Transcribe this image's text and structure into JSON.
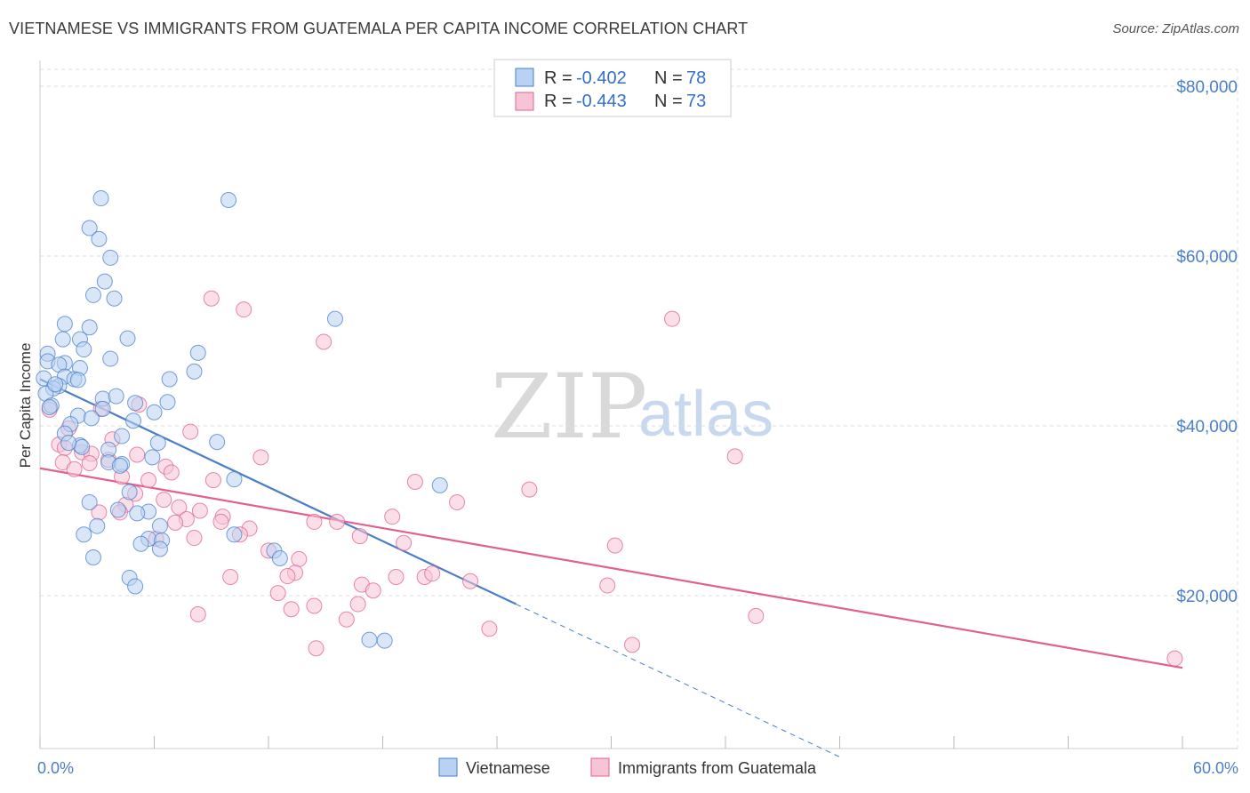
{
  "title": "VIETNAMESE VS IMMIGRANTS FROM GUATEMALA PER CAPITA INCOME CORRELATION CHART",
  "source": "Source: ZipAtlas.com",
  "watermark": {
    "zip": "ZIP",
    "atlas": "atlas"
  },
  "colors": {
    "blue": "#4a7fc8",
    "blue_fill": "#b9d2f3",
    "pink": "#e06090",
    "pink_fill": "#f7c4d5",
    "grid": "#dddddd"
  },
  "legend": {
    "series1": {
      "r_label": "R = ",
      "r_value": "-0.402",
      "n_label": "N = ",
      "n_value": "78"
    },
    "series2": {
      "r_label": "R = ",
      "r_value": "-0.443",
      "n_label": "N = ",
      "n_value": "73"
    }
  },
  "chart_data": {
    "type": "scatter",
    "title": "VIETNAMESE VS IMMIGRANTS FROM GUATEMALA PER CAPITA INCOME CORRELATION CHART",
    "xlabel": "",
    "ylabel": "Per Capita Income",
    "xlim": [
      0,
      60
    ],
    "ylim": [
      0,
      82000
    ],
    "x_tick_labels": [
      "0.0%",
      "60.0%"
    ],
    "y_tick_labels": [
      "$20,000",
      "$40,000",
      "$60,000",
      "$80,000"
    ],
    "y_ticks": [
      20000,
      40000,
      60000,
      80000
    ],
    "series": [
      {
        "name": "Vietnamese",
        "color": "#4a7fc8",
        "trend": {
          "x0": 0,
          "y0": 45500,
          "x1": 25,
          "y1": 19000,
          "dash_to_x": 42,
          "dash_to_y": 1000
        },
        "points": [
          [
            3.2,
            66800
          ],
          [
            9.9,
            66600
          ],
          [
            2.6,
            63300
          ],
          [
            3.1,
            62000
          ],
          [
            3.7,
            59800
          ],
          [
            3.4,
            57000
          ],
          [
            2.8,
            55400
          ],
          [
            3.9,
            55000
          ],
          [
            1.3,
            52000
          ],
          [
            15.5,
            52600
          ],
          [
            2.6,
            51600
          ],
          [
            1.2,
            50200
          ],
          [
            2.1,
            50200
          ],
          [
            4.6,
            50300
          ],
          [
            2.3,
            49000
          ],
          [
            8.3,
            48600
          ],
          [
            0.4,
            48500
          ],
          [
            3.7,
            47900
          ],
          [
            0.4,
            47600
          ],
          [
            1.3,
            47400
          ],
          [
            1.0,
            47200
          ],
          [
            2.1,
            46800
          ],
          [
            8.1,
            46400
          ],
          [
            1.3,
            45800
          ],
          [
            0.2,
            45600
          ],
          [
            1.8,
            45500
          ],
          [
            2.0,
            45400
          ],
          [
            6.8,
            45500
          ],
          [
            1.0,
            44700
          ],
          [
            0.7,
            44400
          ],
          [
            0.3,
            43800
          ],
          [
            3.3,
            43200
          ],
          [
            4.0,
            43500
          ],
          [
            6.7,
            42800
          ],
          [
            0.6,
            42400
          ],
          [
            5.0,
            42700
          ],
          [
            0.5,
            42200
          ],
          [
            3.3,
            42000
          ],
          [
            6.0,
            41600
          ],
          [
            2.0,
            41200
          ],
          [
            2.7,
            40900
          ],
          [
            4.9,
            40600
          ],
          [
            1.6,
            40200
          ],
          [
            1.3,
            39100
          ],
          [
            4.3,
            38800
          ],
          [
            9.3,
            38100
          ],
          [
            6.2,
            38000
          ],
          [
            2.1,
            37700
          ],
          [
            2.2,
            37500
          ],
          [
            3.6,
            37200
          ],
          [
            5.9,
            36300
          ],
          [
            3.6,
            35700
          ],
          [
            4.3,
            35500
          ],
          [
            4.2,
            35300
          ],
          [
            10.2,
            33700
          ],
          [
            21.0,
            33000
          ],
          [
            4.7,
            32200
          ],
          [
            2.6,
            31000
          ],
          [
            4.1,
            30100
          ],
          [
            5.7,
            29900
          ],
          [
            5.1,
            29700
          ],
          [
            3.0,
            28200
          ],
          [
            6.3,
            28200
          ],
          [
            2.3,
            27200
          ],
          [
            10.2,
            27200
          ],
          [
            5.7,
            26700
          ],
          [
            6.4,
            26500
          ],
          [
            5.3,
            26100
          ],
          [
            6.3,
            25500
          ],
          [
            12.3,
            25300
          ],
          [
            12.6,
            24400
          ],
          [
            2.8,
            24500
          ],
          [
            4.7,
            22100
          ],
          [
            5.0,
            21100
          ],
          [
            17.3,
            14800
          ],
          [
            18.1,
            14700
          ],
          [
            1.5,
            38000
          ],
          [
            0.8,
            44900
          ]
        ]
      },
      {
        "name": "Immigrants from Guatemala",
        "color": "#e06090",
        "trend": {
          "x0": 0,
          "y0": 35000,
          "x1": 60,
          "y1": 11500
        },
        "points": [
          [
            9.0,
            55000
          ],
          [
            10.7,
            53700
          ],
          [
            33.2,
            52600
          ],
          [
            14.9,
            49900
          ],
          [
            5.2,
            42500
          ],
          [
            3.2,
            42000
          ],
          [
            0.5,
            41900
          ],
          [
            1.5,
            39700
          ],
          [
            7.9,
            39300
          ],
          [
            3.8,
            38400
          ],
          [
            1.0,
            37800
          ],
          [
            1.3,
            37400
          ],
          [
            2.2,
            36900
          ],
          [
            2.7,
            36700
          ],
          [
            5.1,
            36600
          ],
          [
            11.6,
            36300
          ],
          [
            36.5,
            36400
          ],
          [
            3.6,
            36000
          ],
          [
            1.2,
            35700
          ],
          [
            6.6,
            35200
          ],
          [
            1.8,
            34900
          ],
          [
            6.9,
            34500
          ],
          [
            4.3,
            34000
          ],
          [
            9.1,
            33600
          ],
          [
            5.7,
            33600
          ],
          [
            19.7,
            33400
          ],
          [
            25.7,
            32500
          ],
          [
            5.0,
            32000
          ],
          [
            6.5,
            31300
          ],
          [
            21.9,
            31000
          ],
          [
            4.5,
            30700
          ],
          [
            7.3,
            30400
          ],
          [
            8.4,
            30000
          ],
          [
            4.2,
            29800
          ],
          [
            18.5,
            29300
          ],
          [
            9.6,
            29300
          ],
          [
            7.7,
            29000
          ],
          [
            14.4,
            28700
          ],
          [
            9.5,
            28700
          ],
          [
            15.6,
            28700
          ],
          [
            7.1,
            28600
          ],
          [
            11.0,
            27900
          ],
          [
            10.5,
            27200
          ],
          [
            16.8,
            27000
          ],
          [
            8.1,
            26800
          ],
          [
            6.1,
            26700
          ],
          [
            19.1,
            26200
          ],
          [
            30.2,
            25900
          ],
          [
            12.0,
            25300
          ],
          [
            13.6,
            24300
          ],
          [
            13.4,
            22700
          ],
          [
            13.0,
            22300
          ],
          [
            10.0,
            22200
          ],
          [
            20.2,
            22200
          ],
          [
            20.6,
            22600
          ],
          [
            18.7,
            22200
          ],
          [
            22.6,
            21700
          ],
          [
            16.9,
            21300
          ],
          [
            29.8,
            21200
          ],
          [
            17.5,
            20600
          ],
          [
            12.5,
            20300
          ],
          [
            16.7,
            19000
          ],
          [
            14.4,
            18800
          ],
          [
            13.2,
            18400
          ],
          [
            8.3,
            17800
          ],
          [
            37.6,
            17600
          ],
          [
            16.1,
            17200
          ],
          [
            23.6,
            16100
          ],
          [
            31.1,
            14200
          ],
          [
            14.5,
            13800
          ],
          [
            59.6,
            12600
          ],
          [
            3.1,
            29800
          ],
          [
            2.6,
            35600
          ]
        ]
      }
    ]
  },
  "bottom_legend": {
    "series1": "Vietnamese",
    "series2": "Immigrants from Guatemala"
  }
}
